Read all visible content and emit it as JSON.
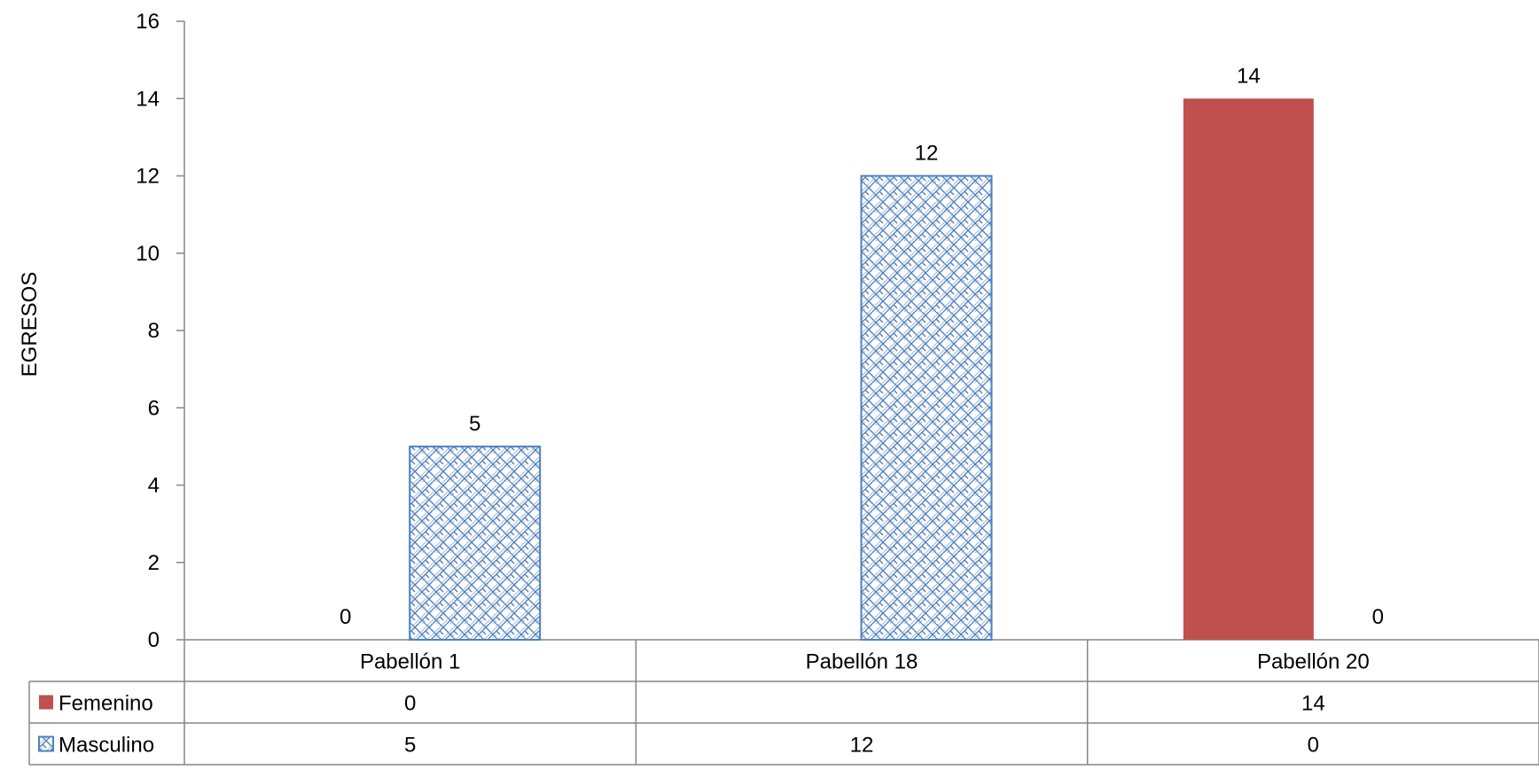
{
  "chart_data": {
    "type": "bar",
    "title": "",
    "xlabel": "",
    "ylabel": "EGRESOS",
    "ylim": [
      0,
      16
    ],
    "yticks": [
      0,
      2,
      4,
      6,
      8,
      10,
      12,
      14,
      16
    ],
    "categories": [
      "Pabellón 1",
      "Pabellón 18",
      "Pabellón 20"
    ],
    "legend_placement": "data-table-left",
    "series": [
      {
        "name": "Femenino",
        "values": [
          0,
          null,
          14
        ],
        "table_values": [
          "0",
          "",
          "14"
        ],
        "color": "#C0504D",
        "pattern": "solid"
      },
      {
        "name": "Masculino",
        "values": [
          5,
          12,
          0
        ],
        "table_values": [
          "5",
          "12",
          "0"
        ],
        "color": "#4F81BD",
        "pattern": "crosshatch"
      }
    ]
  }
}
